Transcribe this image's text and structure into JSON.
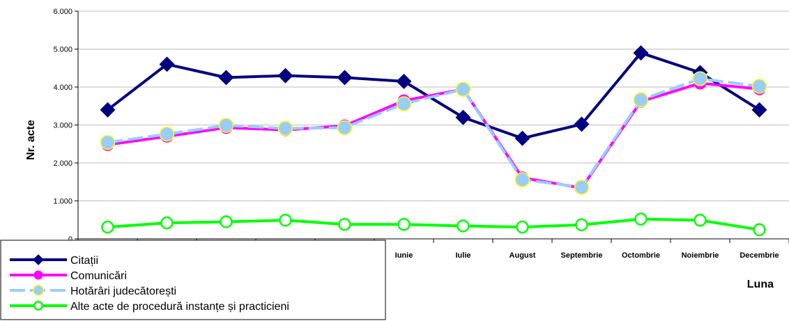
{
  "chart_data": {
    "type": "line",
    "xlabel": "Luna",
    "ylabel": "Nr. acte",
    "ylim": [
      0,
      6000
    ],
    "yticks": [
      "0",
      "1.000",
      "2.000",
      "3.000",
      "4.000",
      "5.000",
      "6.000"
    ],
    "categories": [
      "",
      "",
      "",
      "",
      "",
      "Iunie",
      "Iulie",
      "August",
      "Septembrie",
      "Octombrie",
      "Noiembrie",
      "Decembrie"
    ],
    "grid": true,
    "legend_position": "bottom-left",
    "series": [
      {
        "name": "Citații",
        "color": "#000080",
        "marker": "diamond",
        "dashed": false,
        "values": [
          3400,
          4600,
          4250,
          4300,
          4250,
          4150,
          3200,
          2650,
          3020,
          4900,
          4380,
          3400
        ]
      },
      {
        "name": "Comunicări",
        "color": "#ff00ff",
        "marker": "circle",
        "dashed": false,
        "values": [
          2480,
          2700,
          2930,
          2870,
          2980,
          3640,
          3940,
          1610,
          1340,
          3620,
          4100,
          3950
        ]
      },
      {
        "name": "Hotărâri judecătorești",
        "color": "#99ccff",
        "marker": "circle-yellow",
        "dashed": true,
        "values": [
          2540,
          2760,
          2990,
          2910,
          2930,
          3560,
          3940,
          1560,
          1360,
          3660,
          4220,
          4020
        ]
      },
      {
        "name": "Alte acte de procedură instanțe și practicieni",
        "color": "#00ff00",
        "marker": "circle-open",
        "dashed": false,
        "values": [
          310,
          420,
          450,
          490,
          380,
          380,
          340,
          310,
          370,
          520,
          490,
          240
        ]
      }
    ]
  }
}
